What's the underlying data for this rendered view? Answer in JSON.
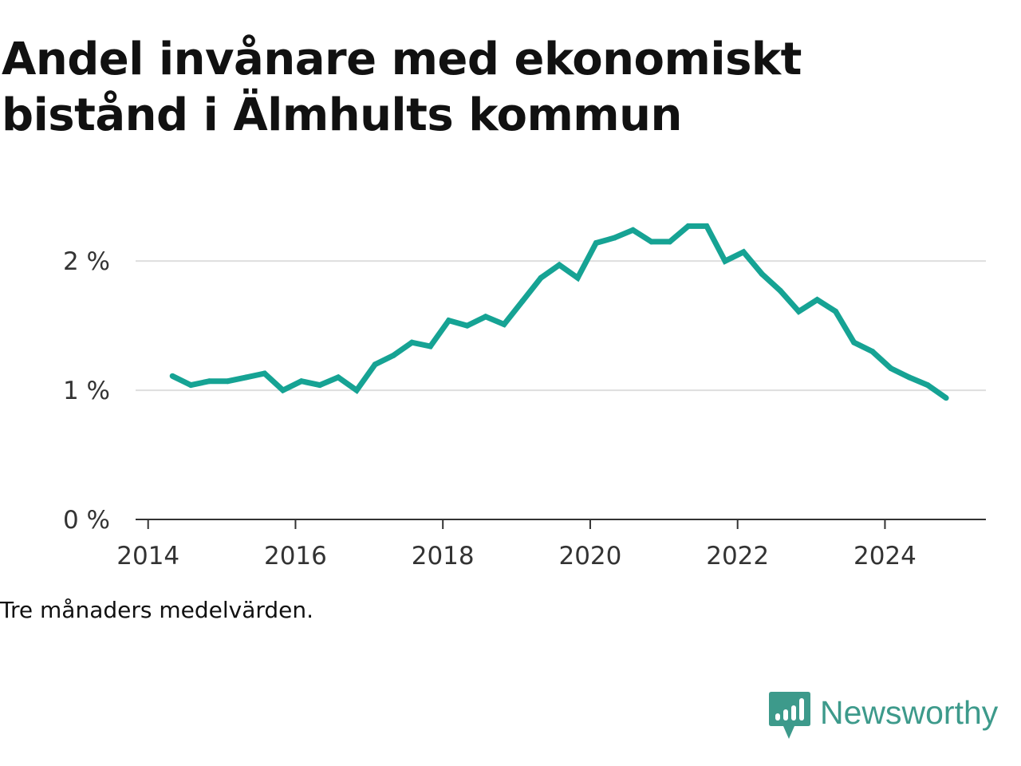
{
  "chart_data": {
    "type": "line",
    "title": "Andel invånare med ekonomiskt bistånd i Älmhults kommun",
    "note": "Tre månaders medelvärden.",
    "xlabel": "",
    "ylabel": "",
    "y_ticks": [
      {
        "value": 0,
        "label": "0 %"
      },
      {
        "value": 1,
        "label": "1 %"
      },
      {
        "value": 2,
        "label": "2 %"
      }
    ],
    "x_ticks": [
      {
        "value": 2014,
        "label": "2014"
      },
      {
        "value": 2016,
        "label": "2016"
      },
      {
        "value": 2018,
        "label": "2018"
      },
      {
        "value": 2020,
        "label": "2020"
      },
      {
        "value": 2022,
        "label": "2022"
      },
      {
        "value": 2024,
        "label": "2024"
      }
    ],
    "xlim": [
      2013.83,
      2025.37
    ],
    "ylim": [
      0,
      2.6
    ],
    "grid": "horizontal",
    "series": [
      {
        "color": "#16a394",
        "x": [
          2014.33,
          2014.58,
          2014.83,
          2015.08,
          2015.33,
          2015.58,
          2015.83,
          2016.08,
          2016.33,
          2016.58,
          2016.83,
          2017.08,
          2017.33,
          2017.58,
          2017.83,
          2018.08,
          2018.33,
          2018.58,
          2018.83,
          2019.08,
          2019.33,
          2019.58,
          2019.83,
          2020.08,
          2020.33,
          2020.58,
          2020.83,
          2021.08,
          2021.33,
          2021.58,
          2021.83,
          2022.08,
          2022.33,
          2022.58,
          2022.83,
          2023.08,
          2023.33,
          2023.58,
          2023.83,
          2024.08,
          2024.33,
          2024.58,
          2024.83
        ],
        "y": [
          1.11,
          1.04,
          1.07,
          1.07,
          1.1,
          1.13,
          1.0,
          1.07,
          1.04,
          1.1,
          1.0,
          1.2,
          1.27,
          1.37,
          1.34,
          1.54,
          1.5,
          1.57,
          1.51,
          1.69,
          1.87,
          1.97,
          1.87,
          2.14,
          2.18,
          2.24,
          2.15,
          2.15,
          2.27,
          2.27,
          2.0,
          2.07,
          1.9,
          1.77,
          1.61,
          1.7,
          1.61,
          1.37,
          1.3,
          1.17,
          1.1,
          1.04,
          0.94
        ]
      }
    ]
  },
  "brand": {
    "name": "Newsworthy",
    "color": "#3d9a8b",
    "logo_icon": "bar-chart-speech-bubble-icon"
  }
}
